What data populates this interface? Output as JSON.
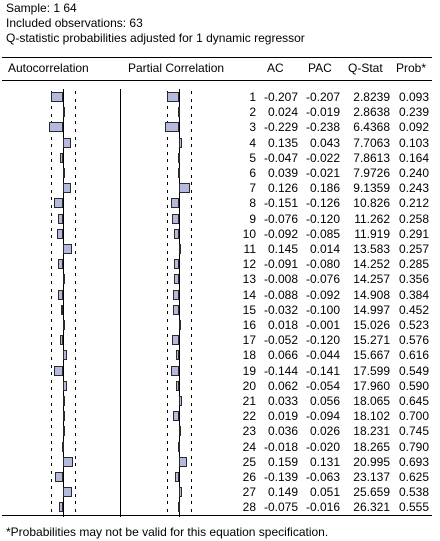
{
  "header": {
    "sample": "Sample: 1 64",
    "observations": "Included observations: 63",
    "note": "Q-statistic probabilities adjusted for 1 dynamic regressor"
  },
  "columns": {
    "autocorrelation": "Autocorrelation",
    "partial_correlation": "Partial Correlation",
    "ac": "AC",
    "pac": "PAC",
    "qstat": "Q-Stat",
    "prob": "Prob*"
  },
  "rows": [
    {
      "lag": "1",
      "ac": "-0.207",
      "pac": "-0.207",
      "qstat": "2.8239",
      "prob": "0.093"
    },
    {
      "lag": "2",
      "ac": "0.024",
      "pac": "-0.019",
      "qstat": "2.8638",
      "prob": "0.239"
    },
    {
      "lag": "3",
      "ac": "-0.229",
      "pac": "-0.238",
      "qstat": "6.4368",
      "prob": "0.092"
    },
    {
      "lag": "4",
      "ac": "0.135",
      "pac": "0.043",
      "qstat": "7.7063",
      "prob": "0.103"
    },
    {
      "lag": "5",
      "ac": "-0.047",
      "pac": "-0.022",
      "qstat": "7.8613",
      "prob": "0.164"
    },
    {
      "lag": "6",
      "ac": "0.039",
      "pac": "-0.021",
      "qstat": "7.9726",
      "prob": "0.240"
    },
    {
      "lag": "7",
      "ac": "0.126",
      "pac": "0.186",
      "qstat": "9.1359",
      "prob": "0.243"
    },
    {
      "lag": "8",
      "ac": "-0.151",
      "pac": "-0.126",
      "qstat": "10.826",
      "prob": "0.212"
    },
    {
      "lag": "9",
      "ac": "-0.076",
      "pac": "-0.120",
      "qstat": "11.262",
      "prob": "0.258"
    },
    {
      "lag": "10",
      "ac": "-0.092",
      "pac": "-0.085",
      "qstat": "11.919",
      "prob": "0.291"
    },
    {
      "lag": "11",
      "ac": "0.145",
      "pac": "0.014",
      "qstat": "13.583",
      "prob": "0.257"
    },
    {
      "lag": "12",
      "ac": "-0.091",
      "pac": "-0.080",
      "qstat": "14.252",
      "prob": "0.285"
    },
    {
      "lag": "13",
      "ac": "-0.008",
      "pac": "-0.076",
      "qstat": "14.257",
      "prob": "0.356"
    },
    {
      "lag": "14",
      "ac": "-0.088",
      "pac": "-0.092",
      "qstat": "14.908",
      "prob": "0.384"
    },
    {
      "lag": "15",
      "ac": "-0.032",
      "pac": "-0.100",
      "qstat": "14.997",
      "prob": "0.452"
    },
    {
      "lag": "16",
      "ac": "0.018",
      "pac": "-0.001",
      "qstat": "15.026",
      "prob": "0.523"
    },
    {
      "lag": "17",
      "ac": "-0.052",
      "pac": "-0.120",
      "qstat": "15.271",
      "prob": "0.576"
    },
    {
      "lag": "18",
      "ac": "0.066",
      "pac": "-0.044",
      "qstat": "15.667",
      "prob": "0.616"
    },
    {
      "lag": "19",
      "ac": "-0.144",
      "pac": "-0.141",
      "qstat": "17.599",
      "prob": "0.549"
    },
    {
      "lag": "20",
      "ac": "0.062",
      "pac": "-0.054",
      "qstat": "17.960",
      "prob": "0.590"
    },
    {
      "lag": "21",
      "ac": "0.033",
      "pac": "0.056",
      "qstat": "18.065",
      "prob": "0.645"
    },
    {
      "lag": "22",
      "ac": "0.019",
      "pac": "-0.094",
      "qstat": "18.102",
      "prob": "0.700"
    },
    {
      "lag": "23",
      "ac": "0.036",
      "pac": "0.026",
      "qstat": "18.231",
      "prob": "0.745"
    },
    {
      "lag": "24",
      "ac": "-0.018",
      "pac": "-0.020",
      "qstat": "18.265",
      "prob": "0.790"
    },
    {
      "lag": "25",
      "ac": "0.159",
      "pac": "0.131",
      "qstat": "20.995",
      "prob": "0.693"
    },
    {
      "lag": "26",
      "ac": "-0.139",
      "pac": "-0.063",
      "qstat": "23.137",
      "prob": "0.625"
    },
    {
      "lag": "27",
      "ac": "0.149",
      "pac": "0.051",
      "qstat": "25.659",
      "prob": "0.538"
    },
    {
      "lag": "28",
      "ac": "-0.075",
      "pac": "-0.016",
      "qstat": "26.321",
      "prob": "0.555"
    }
  ],
  "footnote": "*Probabilities may not be valid for this equation specification.",
  "colors": {
    "bar_fill": "#b4b9dd",
    "bar_border": "#2b2b2b"
  }
}
